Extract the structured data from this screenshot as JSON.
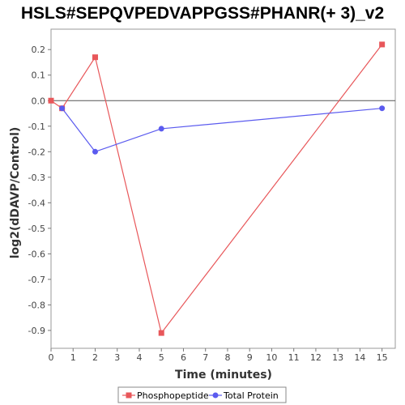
{
  "chart_data": {
    "type": "line",
    "title": "HSLS#SEPQVPEDVAPPGSS#PHANR(+ 3)_v2",
    "xlabel": "Time (minutes)",
    "ylabel": "log2(dDAVP/Control)",
    "xlim": [
      0,
      15.6
    ],
    "ylim": [
      -0.97,
      0.28
    ],
    "x_ticks": [
      0,
      1,
      2,
      3,
      4,
      5,
      6,
      7,
      8,
      9,
      10,
      11,
      12,
      13,
      14,
      15
    ],
    "y_ticks": [
      0.2,
      0.1,
      0.0,
      -0.1,
      -0.2,
      -0.3,
      -0.4,
      -0.5,
      -0.6,
      -0.7,
      -0.8,
      -0.9
    ],
    "y_tick_labels": [
      "0.2",
      "0.1",
      "0.0",
      "-0.1",
      "-0.2",
      "-0.3",
      "-0.4",
      "-0.5",
      "-0.6",
      "-0.7",
      "-0.8",
      "-0.9"
    ],
    "zero_line": true,
    "grid": false,
    "legend_position": "bottom-center",
    "series": [
      {
        "name": "Phosphopeptide",
        "color": "#e8575a",
        "marker": "square",
        "x": [
          0,
          0.5,
          2,
          5,
          15
        ],
        "y": [
          0.0,
          -0.03,
          0.17,
          -0.91,
          0.22
        ]
      },
      {
        "name": "Total Protein",
        "color": "#5b5bef",
        "marker": "circle",
        "x": [
          0.5,
          2,
          5,
          15
        ],
        "y": [
          -0.03,
          -0.2,
          -0.11,
          -0.03
        ]
      }
    ]
  }
}
